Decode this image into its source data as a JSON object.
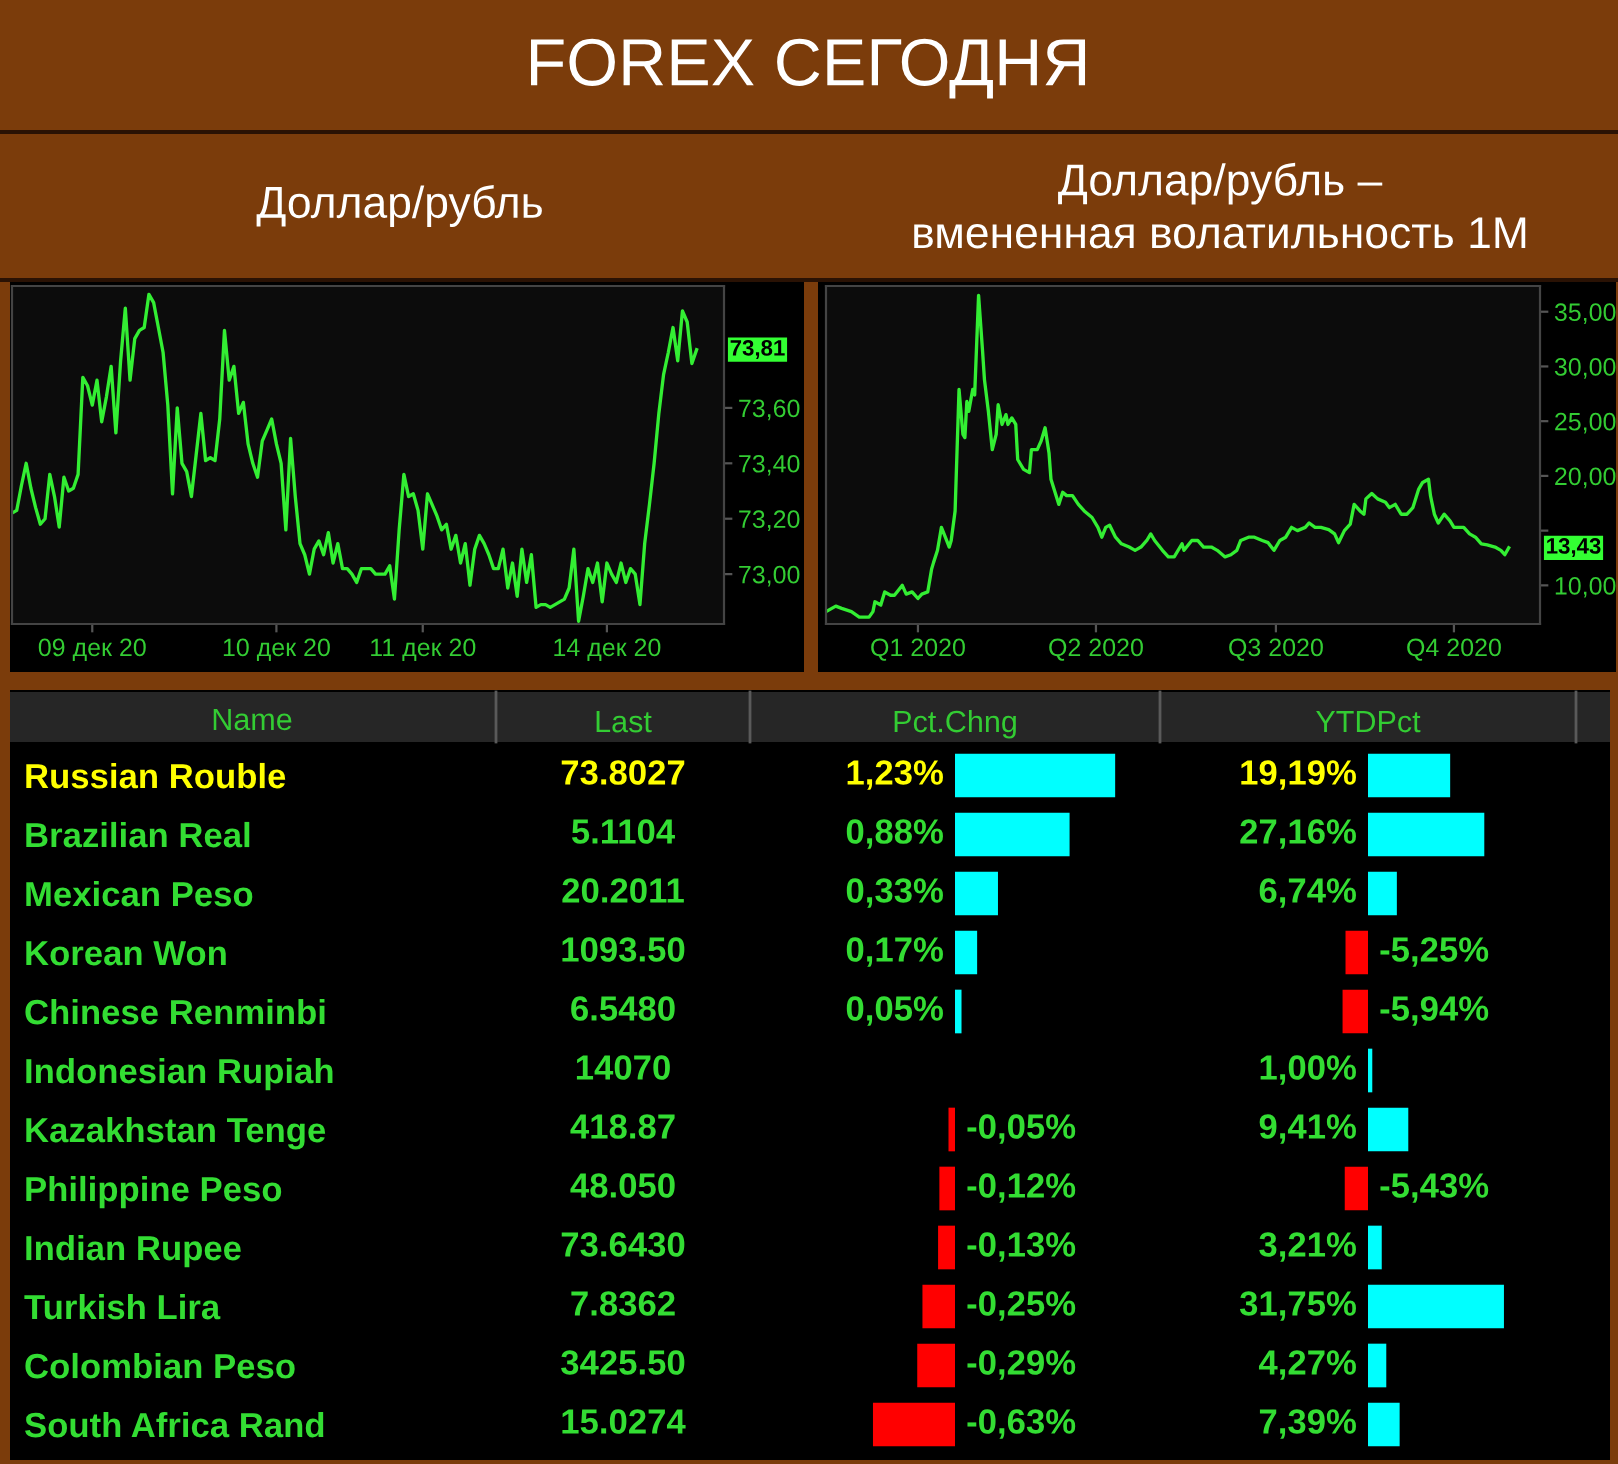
{
  "chart_data": [
    {
      "type": "line",
      "title": "FOREX СЕГОДНЯ",
      "subtitle": "Доллар/рубль",
      "categories": [
        null,
        null,
        null,
        null,
        null,
        null,
        null,
        null,
        null,
        null,
        null,
        null,
        null,
        null,
        null,
        null,
        null,
        "09 дек 20",
        null,
        null,
        null,
        null,
        null,
        null,
        null,
        null,
        null,
        null,
        null,
        null,
        null,
        null,
        null,
        null,
        null,
        null,
        null,
        null,
        null,
        null,
        null,
        null,
        null,
        null,
        null,
        null,
        null,
        null,
        null,
        null,
        null,
        null,
        null,
        null,
        null,
        null,
        "10 дек 20",
        null,
        null,
        null,
        null,
        null,
        null,
        null,
        null,
        null,
        null,
        null,
        null,
        null,
        null,
        null,
        null,
        null,
        null,
        null,
        null,
        null,
        null,
        null,
        null,
        null,
        null,
        null,
        null,
        null,
        null,
        "11 дек 20",
        null,
        null,
        null,
        null,
        null,
        null,
        null,
        null,
        null,
        null,
        null,
        null,
        null,
        null,
        null,
        null,
        null,
        null,
        null,
        null,
        null,
        null,
        null,
        null,
        null,
        null,
        null,
        null,
        null,
        null,
        null,
        null,
        null,
        null,
        null,
        null,
        null,
        null,
        "14 дек 20",
        null,
        null,
        null,
        null,
        null,
        null,
        null,
        null,
        null,
        null,
        null,
        null,
        null,
        null,
        null,
        null,
        null,
        null,
        null
      ],
      "series": [
        {
          "color": "#33ee33",
          "values": [
            73.22,
            73.23,
            73.32,
            73.4,
            73.31,
            73.24,
            73.18,
            73.2,
            73.36,
            73.28,
            73.17,
            73.35,
            73.3,
            73.31,
            73.36,
            73.71,
            73.68,
            73.61,
            73.7,
            73.55,
            73.64,
            73.75,
            73.51,
            73.77,
            73.96,
            73.7,
            73.85,
            73.88,
            73.89,
            74.01,
            73.98,
            73.89,
            73.8,
            73.61,
            73.29,
            73.6,
            73.4,
            73.37,
            73.28,
            73.43,
            73.58,
            73.41,
            73.42,
            73.41,
            73.56,
            73.88,
            73.7,
            73.75,
            73.58,
            73.62,
            73.47,
            73.4,
            73.35,
            73.48,
            73.52,
            73.56,
            73.47,
            73.4,
            73.16,
            73.49,
            73.28,
            73.11,
            73.07,
            73.0,
            73.09,
            73.12,
            73.07,
            73.15,
            73.04,
            73.11,
            73.02,
            73.02,
            73.0,
            72.97,
            73.02,
            73.02,
            73.02,
            73.0,
            73.0,
            73.0,
            73.03,
            72.91,
            73.16,
            73.36,
            73.28,
            73.29,
            73.23,
            73.09,
            73.29,
            73.25,
            73.21,
            73.16,
            73.18,
            73.09,
            73.14,
            73.04,
            73.11,
            72.96,
            73.09,
            73.14,
            73.11,
            73.07,
            73.02,
            73.02,
            73.09,
            72.95,
            73.04,
            72.92,
            73.09,
            72.97,
            73.07,
            72.88,
            72.89,
            72.89,
            72.88,
            72.89,
            72.9,
            72.91,
            72.95,
            73.09,
            72.83,
            72.92,
            73.02,
            72.97,
            73.04,
            72.9,
            73.04,
            73.0,
            72.97,
            73.04,
            72.97,
            73.02,
            73.0,
            72.89,
            73.11,
            73.25,
            73.4,
            73.58,
            73.72,
            73.8,
            73.89,
            73.77,
            73.95,
            73.91,
            73.76,
            73.81
          ]
        }
      ],
      "ylim": [
        72.82,
        74.04
      ],
      "yticks": [
        {
          "value": 73.0,
          "label": "73,00"
        },
        {
          "value": 73.2,
          "label": "73,20"
        },
        {
          "value": 73.4,
          "label": "73,40"
        },
        {
          "value": 73.6,
          "label": "73,60"
        }
      ],
      "annotations": [
        "73,81"
      ]
    },
    {
      "type": "line",
      "title": "Доллар/рубль –\nвмененная волатильность 1M",
      "x": [
        "2019-12-31",
        "2020-01-05",
        "2020-01-08",
        "2020-01-13",
        "2020-01-17",
        "2020-01-22",
        "2020-01-24",
        "2020-01-25",
        "2020-01-28",
        "2020-01-30",
        "2020-02-02",
        "2020-02-04",
        "2020-02-08",
        "2020-02-10",
        "2020-02-13",
        "2020-02-16",
        "2020-02-18",
        "2020-02-21",
        "2020-02-23",
        "2020-02-24",
        "2020-02-26",
        "2020-02-28",
        "2020-03-01",
        "2020-03-03",
        "2020-03-04",
        "2020-03-06",
        "2020-03-08",
        "2020-03-10",
        "2020-03-11",
        "2020-03-12",
        "2020-03-13",
        "2020-03-15",
        "2020-03-16",
        "2020-03-18",
        "2020-03-20",
        "2020-03-21",
        "2020-03-23",
        "2020-03-25",
        "2020-03-27",
        "2020-03-28",
        "2020-03-30",
        "2020-04-01",
        "2020-04-02",
        "2020-04-04",
        "2020-04-06",
        "2020-04-07",
        "2020-04-10",
        "2020-04-13",
        "2020-04-14",
        "2020-04-17",
        "2020-04-19",
        "2020-04-21",
        "2020-04-23",
        "2020-04-24",
        "2020-04-28",
        "2020-04-30",
        "2020-05-02",
        "2020-05-05",
        "2020-05-08",
        "2020-05-11",
        "2020-05-15",
        "2020-05-18",
        "2020-05-20",
        "2020-05-22",
        "2020-05-24",
        "2020-05-27",
        "2020-05-30",
        "2020-06-03",
        "2020-06-06",
        "2020-06-09",
        "2020-06-12",
        "2020-06-14",
        "2020-06-16",
        "2020-06-20",
        "2020-06-23",
        "2020-06-26",
        "2020-06-30",
        "2020-07-01",
        "2020-07-05",
        "2020-07-08",
        "2020-07-11",
        "2020-07-15",
        "2020-07-18",
        "2020-07-22",
        "2020-07-25",
        "2020-07-28",
        "2020-07-30",
        "2020-08-03",
        "2020-08-06",
        "2020-08-10",
        "2020-08-13",
        "2020-08-16",
        "2020-08-19",
        "2020-08-22",
        "2020-08-25",
        "2020-08-28",
        "2020-09-01",
        "2020-09-03",
        "2020-09-06",
        "2020-09-09",
        "2020-09-13",
        "2020-09-16",
        "2020-09-18",
        "2020-09-21",
        "2020-09-24",
        "2020-09-26",
        "2020-09-29",
        "2020-10-01",
        "2020-10-02",
        "2020-10-05",
        "2020-10-08",
        "2020-10-12",
        "2020-10-14",
        "2020-10-17",
        "2020-10-20",
        "2020-10-23",
        "2020-10-26",
        "2020-10-29",
        "2020-10-31",
        "2020-11-03",
        "2020-11-04",
        "2020-11-06",
        "2020-11-08",
        "2020-11-11",
        "2020-11-14",
        "2020-11-16",
        "2020-11-19",
        "2020-11-21",
        "2020-11-24",
        "2020-11-27",
        "2020-11-30",
        "2020-12-03",
        "2020-12-07",
        "2020-12-10",
        "2020-12-12",
        "2020-12-14"
      ],
      "series": [
        {
          "color": "#33ee33",
          "values": [
            7.6,
            8.1,
            7.9,
            7.6,
            7.1,
            7.1,
            7.6,
            8.5,
            8.2,
            9.4,
            9.1,
            9.1,
            10.0,
            9.2,
            9.4,
            8.8,
            9.2,
            9.4,
            11.5,
            12.1,
            13.2,
            15.3,
            14.4,
            13.5,
            14.1,
            16.8,
            27.9,
            23.8,
            23.5,
            26.8,
            25.9,
            27.9,
            27.4,
            36.5,
            31.5,
            28.8,
            25.9,
            22.4,
            23.8,
            26.5,
            24.7,
            25.6,
            24.7,
            25.3,
            24.7,
            21.5,
            20.6,
            20.3,
            22.4,
            22.4,
            23.2,
            24.4,
            22.1,
            19.7,
            17.4,
            18.5,
            18.2,
            18.2,
            17.4,
            16.8,
            16.2,
            15.3,
            14.4,
            15.3,
            15.5,
            14.4,
            13.8,
            13.5,
            13.2,
            13.5,
            14.1,
            14.7,
            14.1,
            13.2,
            12.6,
            12.6,
            13.8,
            13.2,
            14.1,
            14.1,
            13.5,
            13.5,
            13.2,
            12.6,
            12.8,
            13.2,
            14.1,
            14.4,
            14.4,
            14.1,
            13.9,
            13.2,
            14.1,
            14.4,
            15.3,
            15.0,
            15.3,
            15.7,
            15.3,
            15.3,
            15.1,
            14.7,
            13.9,
            15.0,
            15.6,
            17.4,
            16.8,
            16.5,
            17.9,
            18.4,
            17.9,
            17.6,
            17.1,
            17.4,
            16.5,
            16.5,
            17.1,
            18.8,
            19.4,
            19.7,
            18.2,
            16.5,
            15.7,
            16.5,
            15.9,
            15.3,
            15.3,
            15.3,
            14.7,
            14.4,
            13.8,
            13.7,
            13.5,
            13.2,
            12.8,
            13.43
          ]
        }
      ],
      "xlim": [
        "2019-12-31",
        "2020-12-30"
      ],
      "ylim": [
        6.47,
        37.35
      ],
      "xticks": [
        {
          "value": "2020-02-16",
          "label": "Q1 2020"
        },
        {
          "value": "2020-05-17",
          "label": "Q2 2020"
        },
        {
          "value": "2020-08-17",
          "label": "Q3 2020"
        },
        {
          "value": "2020-11-16",
          "label": "Q4 2020"
        }
      ],
      "yticks": [
        {
          "value": 10,
          "label": "10,00"
        },
        {
          "value": 15,
          "label": null
        },
        {
          "value": 20,
          "label": "20,00"
        },
        {
          "value": 25,
          "label": "25,00"
        },
        {
          "value": 30,
          "label": "30,00"
        },
        {
          "value": 35,
          "label": "35,00"
        }
      ],
      "annotations": [
        {
          "text": "13,43",
          "x": "2020-12-14",
          "y": 13.43
        }
      ]
    },
    {
      "type": "bar",
      "orientation": "horizontal",
      "title": "Pct.Chng",
      "ylabel": "Name",
      "tick_labels": "y",
      "categories": [
        "Russian Rouble",
        "Brazilian Real",
        "Mexican Peso",
        "Korean Won",
        "Chinese Renminbi",
        "Indonesian Rupiah",
        "Kazakhstan Tenge",
        "Philippine Peso",
        "Indian Rupee",
        "Turkish Lira",
        "Colombian Peso",
        "South Africa Rand"
      ],
      "values": [
        1.23,
        0.88,
        0.33,
        0.17,
        0.05,
        null,
        -0.05,
        -0.12,
        -0.13,
        -0.25,
        -0.29,
        -0.63
      ],
      "colors": [
        "#00ffff",
        "#00ffff",
        "#00ffff",
        "#00ffff",
        "#00ffff",
        "#00ffff",
        "#ff0000",
        "#ff0000",
        "#ff0000",
        "#ff0000",
        "#ff0000",
        "#ff0000"
      ],
      "value_labels": [
        "1,23%",
        "0,88%",
        "0,33%",
        "0,17%",
        "0,05%",
        null,
        "-0,05%",
        "-0,12%",
        "-0,13%",
        "-0,25%",
        "-0,29%",
        "-0,63%"
      ]
    },
    {
      "type": "other",
      "title": "Last",
      "annotations": [
        "73.8027",
        "5.1104",
        "20.2011",
        "1093.50",
        "6.5480",
        "14070",
        "418.87",
        "48.050",
        "73.6430",
        "7.8362",
        "3425.50",
        "15.0274"
      ]
    },
    {
      "type": "bar",
      "orientation": "horizontal",
      "title": "YTDPct",
      "tick_labels": false,
      "categories": [
        null,
        null,
        null,
        null,
        null,
        null,
        null,
        null,
        null,
        null,
        null,
        null
      ],
      "values": [
        19.19,
        27.16,
        6.74,
        -5.25,
        -5.94,
        1.0,
        9.41,
        -5.43,
        3.21,
        31.75,
        4.27,
        7.39
      ],
      "colors": [
        "#00ffff",
        "#00ffff",
        "#00ffff",
        "#ff0000",
        "#ff0000",
        "#00ffff",
        "#00ffff",
        "#ff0000",
        "#00ffff",
        "#00ffff",
        "#00ffff",
        "#00ffff"
      ],
      "value_labels": [
        "19,19%",
        "27,16%",
        "6,74%",
        "-5,25%",
        "-5,94%",
        "1,00%",
        "9,41%",
        "-5,43%",
        "3,21%",
        "31,75%",
        "4,27%",
        "7,39%"
      ]
    }
  ]
}
